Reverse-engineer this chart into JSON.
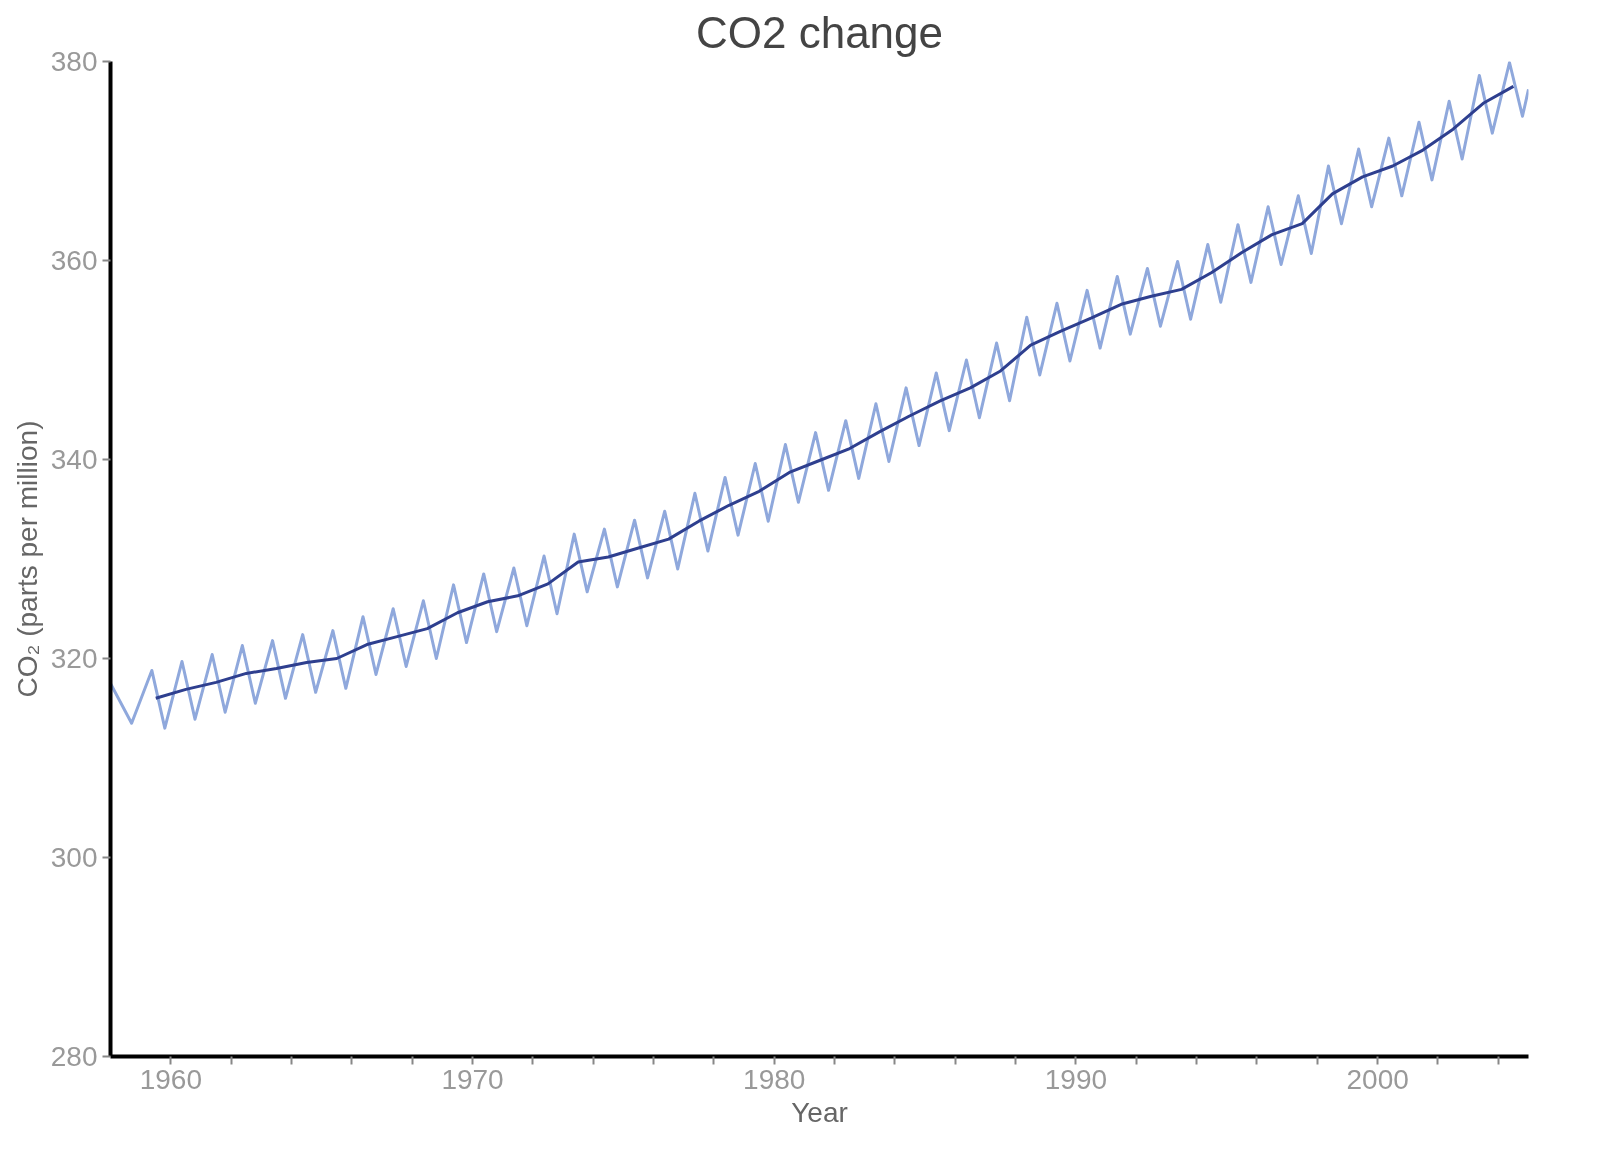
{
  "chart_data": {
    "type": "line",
    "title": "CO2 change",
    "xlabel": "Year",
    "ylabel": "CO₂ (parts per million)",
    "xlim": [
      1958,
      2005
    ],
    "ylim": [
      280,
      380
    ],
    "xticks": [
      1960,
      {
        "value": 1962,
        "label": null
      },
      {
        "value": 1964,
        "label": null
      },
      {
        "value": 1966,
        "label": null
      },
      {
        "value": 1968,
        "label": null
      },
      1970,
      {
        "value": 1972,
        "label": null
      },
      {
        "value": 1974,
        "label": null
      },
      {
        "value": 1976,
        "label": null
      },
      {
        "value": 1978,
        "label": null
      },
      1980,
      {
        "value": 1982,
        "label": null
      },
      {
        "value": 1984,
        "label": null
      },
      {
        "value": 1986,
        "label": null
      },
      {
        "value": 1988,
        "label": null
      },
      1990,
      {
        "value": 1992,
        "label": null
      },
      {
        "value": 1994,
        "label": null
      },
      {
        "value": 1996,
        "label": null
      },
      {
        "value": 1998,
        "label": null
      },
      2000,
      {
        "value": 2002,
        "label": null
      },
      {
        "value": 2004,
        "label": null
      }
    ],
    "yticks": [
      280,
      300,
      320,
      340,
      360,
      380
    ],
    "grid": false,
    "marker": "none",
    "line_style": "solid",
    "series": [
      {
        "color": "#8fa8dc",
        "x": [
          1958.0,
          1958.7,
          1959.37,
          1959.8,
          1960.37,
          1960.8,
          1961.37,
          1961.8,
          1962.37,
          1962.8,
          1963.37,
          1963.8,
          1964.37,
          1964.8,
          1965.37,
          1965.8,
          1966.37,
          1966.8,
          1967.37,
          1967.8,
          1968.37,
          1968.8,
          1969.37,
          1969.8,
          1970.37,
          1970.8,
          1971.37,
          1971.8,
          1972.37,
          1972.8,
          1973.37,
          1973.8,
          1974.37,
          1974.8,
          1975.37,
          1975.8,
          1976.37,
          1976.8,
          1977.37,
          1977.8,
          1978.37,
          1978.8,
          1979.37,
          1979.8,
          1980.37,
          1980.8,
          1981.37,
          1981.8,
          1982.37,
          1982.8,
          1983.37,
          1983.8,
          1984.37,
          1984.8,
          1985.37,
          1985.8,
          1986.37,
          1986.8,
          1987.37,
          1987.8,
          1988.37,
          1988.8,
          1989.37,
          1989.8,
          1990.37,
          1990.8,
          1991.37,
          1991.8,
          1992.37,
          1992.8,
          1993.37,
          1993.8,
          1994.37,
          1994.8,
          1995.37,
          1995.8,
          1996.37,
          1996.8,
          1997.37,
          1997.8,
          1998.37,
          1998.8,
          1999.37,
          1999.8,
          2000.37,
          2000.8,
          2001.37,
          2001.8,
          2002.37,
          2002.8,
          2003.37,
          2003.8,
          2004.37,
          2004.8,
          2005.0
        ],
        "values": [
          317.5,
          313.5,
          318.8,
          313.0,
          319.7,
          313.9,
          320.4,
          314.6,
          321.3,
          315.5,
          321.8,
          316.0,
          322.4,
          316.6,
          322.8,
          317.0,
          324.2,
          318.4,
          325.0,
          319.2,
          325.8,
          320.0,
          327.4,
          321.6,
          328.5,
          322.7,
          329.1,
          323.3,
          330.3,
          324.5,
          332.5,
          326.7,
          333.0,
          327.2,
          333.9,
          328.1,
          334.8,
          329.0,
          336.6,
          330.8,
          338.2,
          332.4,
          339.6,
          333.8,
          341.5,
          335.7,
          342.7,
          336.9,
          343.9,
          338.1,
          345.6,
          339.8,
          347.2,
          341.4,
          348.7,
          342.9,
          350.0,
          344.2,
          351.7,
          345.9,
          354.3,
          348.5,
          355.7,
          349.9,
          357.0,
          351.2,
          358.4,
          352.6,
          359.2,
          353.4,
          359.9,
          354.1,
          361.6,
          355.8,
          363.6,
          357.8,
          365.4,
          359.6,
          366.5,
          360.7,
          369.5,
          363.7,
          371.2,
          365.4,
          372.3,
          366.5,
          373.9,
          368.1,
          376.0,
          370.2,
          378.6,
          372.8,
          379.9,
          374.5,
          377.2
        ]
      },
      {
        "color": "#2e3f8f",
        "x": [
          1959.5,
          1960.5,
          1961.5,
          1962.5,
          1963.5,
          1964.5,
          1965.5,
          1966.5,
          1967.5,
          1968.5,
          1969.5,
          1970.5,
          1971.5,
          1972.5,
          1973.5,
          1974.5,
          1975.5,
          1976.5,
          1977.5,
          1978.5,
          1979.5,
          1980.5,
          1981.5,
          1982.5,
          1983.5,
          1984.5,
          1985.5,
          1986.5,
          1987.5,
          1988.5,
          1989.5,
          1990.5,
          1991.5,
          1992.5,
          1993.5,
          1994.5,
          1995.5,
          1996.5,
          1997.5,
          1998.5,
          1999.5,
          2000.5,
          2001.5,
          2002.5,
          2003.5,
          2004.5
        ],
        "values": [
          316.0,
          316.9,
          317.6,
          318.5,
          319.0,
          319.6,
          320.0,
          321.4,
          322.2,
          323.0,
          324.6,
          325.7,
          326.3,
          327.5,
          329.7,
          330.2,
          331.1,
          332.0,
          333.8,
          335.4,
          336.8,
          338.7,
          339.9,
          341.1,
          342.8,
          344.4,
          345.9,
          347.2,
          348.9,
          351.5,
          352.9,
          354.2,
          355.6,
          356.4,
          357.1,
          358.8,
          360.8,
          362.6,
          363.7,
          366.7,
          368.4,
          369.5,
          371.1,
          373.2,
          375.8,
          377.5
        ]
      }
    ]
  }
}
